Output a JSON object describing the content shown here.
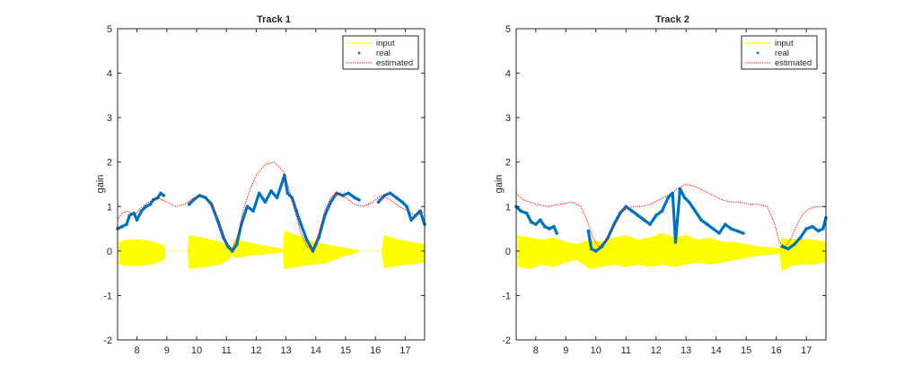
{
  "colors": {
    "input": "#ffff00",
    "real": "#0072bd",
    "estimated": "#ff0000",
    "axes": "#262626"
  },
  "chart_data": [
    {
      "type": "line",
      "title": "Track 1",
      "xlabel": "",
      "ylabel": "gain",
      "xlim": [
        7.35,
        17.65
      ],
      "ylim": [
        -2,
        5
      ],
      "xticks": [
        8,
        9,
        10,
        11,
        12,
        13,
        14,
        15,
        16,
        17
      ],
      "yticks": [
        -2,
        -1,
        0,
        1,
        2,
        3,
        4,
        5
      ],
      "legend": {
        "location": "top-right",
        "entries": [
          "input",
          "real",
          "estimated"
        ]
      },
      "grid": false,
      "series": [
        {
          "name": "input",
          "kind": "band",
          "x": [
            7.4,
            7.6,
            8.0,
            8.5,
            8.9,
            8.95,
            9.7,
            9.75,
            10.2,
            10.8,
            11.1,
            11.2,
            11.3,
            11.8,
            12.4,
            12.9,
            12.95,
            13.5,
            13.9,
            14.3,
            14.9,
            15.4,
            15.45,
            16.2,
            16.3,
            16.8,
            17.2,
            17.65
          ],
          "upper": [
            0.2,
            0.25,
            0.26,
            0.22,
            0.12,
            0.0,
            0.0,
            0.35,
            0.3,
            0.2,
            0.1,
            0.08,
            0.25,
            0.18,
            0.1,
            0.05,
            0.45,
            0.32,
            0.2,
            0.15,
            0.08,
            0.02,
            0.0,
            0.0,
            0.35,
            0.25,
            0.2,
            0.15
          ],
          "lower": [
            -0.3,
            -0.33,
            -0.33,
            -0.3,
            -0.2,
            0.0,
            0.0,
            -0.4,
            -0.36,
            -0.3,
            -0.18,
            -0.08,
            -0.15,
            -0.1,
            -0.06,
            -0.03,
            -0.4,
            -0.34,
            -0.3,
            -0.28,
            -0.12,
            -0.03,
            0.0,
            0.0,
            -0.38,
            -0.32,
            -0.3,
            -0.25
          ]
        },
        {
          "name": "real",
          "kind": "dots",
          "segments": [
            {
              "x": [
                7.35,
                7.5,
                7.65,
                7.75,
                7.9,
                8.0,
                8.15,
                8.3,
                8.45,
                8.55,
                8.7,
                8.8,
                8.9
              ],
              "y": [
                0.5,
                0.55,
                0.6,
                0.8,
                0.85,
                0.7,
                0.9,
                1.0,
                1.05,
                1.15,
                1.2,
                1.3,
                1.25
              ]
            },
            {
              "x": [
                9.75,
                9.9,
                10.1,
                10.3,
                10.5,
                10.7,
                10.9,
                11.05,
                11.2,
                11.35,
                11.5,
                11.7,
                11.9,
                12.1,
                12.3,
                12.5,
                12.7,
                12.85,
                12.95,
                13.05,
                13.2,
                13.35,
                13.5,
                13.7,
                13.9,
                14.1,
                14.3,
                14.5,
                14.7,
                14.9,
                15.1,
                15.3,
                15.45
              ],
              "y": [
                1.05,
                1.15,
                1.25,
                1.2,
                1.05,
                0.7,
                0.3,
                0.1,
                0.0,
                0.15,
                0.6,
                1.0,
                0.9,
                1.3,
                1.1,
                1.35,
                1.2,
                1.5,
                1.7,
                1.3,
                1.2,
                0.9,
                0.6,
                0.25,
                0.0,
                0.3,
                0.8,
                1.1,
                1.3,
                1.25,
                1.3,
                1.2,
                1.15
              ]
            },
            {
              "x": [
                16.1,
                16.3,
                16.5,
                16.7,
                16.9,
                17.05,
                17.2,
                17.35,
                17.5,
                17.65
              ],
              "y": [
                1.1,
                1.25,
                1.3,
                1.2,
                1.1,
                1.0,
                0.7,
                0.8,
                0.9,
                0.6
              ]
            }
          ]
        },
        {
          "name": "estimated",
          "kind": "line",
          "x": [
            7.35,
            7.5,
            7.7,
            7.9,
            8.1,
            8.4,
            8.7,
            9.0,
            9.3,
            9.6,
            9.9,
            10.2,
            10.5,
            10.8,
            11.0,
            11.2,
            11.4,
            11.6,
            11.8,
            12.0,
            12.3,
            12.6,
            12.9,
            13.1,
            13.3,
            13.5,
            13.7,
            13.9,
            14.1,
            14.3,
            14.5,
            14.7,
            15.0,
            15.3,
            15.6,
            15.9,
            16.2,
            16.5,
            16.8,
            17.1,
            17.3,
            17.5,
            17.65
          ],
          "y": [
            0.7,
            0.85,
            0.9,
            0.8,
            0.95,
            1.1,
            1.2,
            1.1,
            1.0,
            1.05,
            1.2,
            1.25,
            1.1,
            0.6,
            0.2,
            0.05,
            0.4,
            1.0,
            1.4,
            1.7,
            1.95,
            2.0,
            1.8,
            1.4,
            0.9,
            0.4,
            0.1,
            0.05,
            0.4,
            0.9,
            1.2,
            1.3,
            1.2,
            1.05,
            1.0,
            1.1,
            1.25,
            1.15,
            1.0,
            0.9,
            0.8,
            0.9,
            0.85
          ]
        }
      ]
    },
    {
      "type": "line",
      "title": "Track 2",
      "xlabel": "",
      "ylabel": "gain",
      "xlim": [
        7.35,
        17.65
      ],
      "ylim": [
        -2,
        5
      ],
      "xticks": [
        8,
        9,
        10,
        11,
        12,
        13,
        14,
        15,
        16,
        17
      ],
      "yticks": [
        -2,
        -1,
        0,
        1,
        2,
        3,
        4,
        5
      ],
      "legend": {
        "location": "top-right",
        "entries": [
          "input",
          "real",
          "estimated"
        ]
      },
      "grid": false,
      "series": [
        {
          "name": "input",
          "kind": "band",
          "x": [
            7.4,
            7.8,
            8.2,
            8.6,
            9.0,
            9.4,
            9.8,
            10.2,
            10.6,
            11.0,
            11.4,
            11.8,
            12.2,
            12.6,
            13.0,
            13.4,
            13.8,
            14.2,
            14.6,
            15.0,
            15.4,
            15.8,
            16.1,
            16.2,
            16.4,
            16.8,
            17.2,
            17.65
          ],
          "upper": [
            0.35,
            0.3,
            0.25,
            0.3,
            0.2,
            0.15,
            0.25,
            0.2,
            0.3,
            0.35,
            0.25,
            0.3,
            0.4,
            0.3,
            0.35,
            0.25,
            0.3,
            0.2,
            0.2,
            0.15,
            0.1,
            0.08,
            0.05,
            0.3,
            0.25,
            0.28,
            0.25,
            0.2
          ],
          "lower": [
            -0.35,
            -0.4,
            -0.3,
            -0.35,
            -0.25,
            -0.2,
            -0.4,
            -0.35,
            -0.3,
            -0.35,
            -0.3,
            -0.35,
            -0.3,
            -0.35,
            -0.3,
            -0.25,
            -0.3,
            -0.25,
            -0.2,
            -0.15,
            -0.1,
            -0.08,
            -0.05,
            -0.45,
            -0.35,
            -0.3,
            -0.3,
            -0.25
          ]
        },
        {
          "name": "real",
          "kind": "dots",
          "segments": [
            {
              "x": [
                7.35,
                7.5,
                7.7,
                7.85,
                8.0,
                8.15,
                8.3,
                8.45,
                8.6,
                8.7
              ],
              "y": [
                1.0,
                0.9,
                0.85,
                0.65,
                0.6,
                0.7,
                0.55,
                0.5,
                0.55,
                0.4
              ]
            },
            {
              "x": [
                9.75,
                9.85,
                10.0,
                10.2,
                10.4,
                10.6,
                10.8,
                11.0,
                11.2,
                11.4,
                11.6,
                11.8,
                12.0,
                12.2,
                12.4,
                12.55,
                12.65,
                12.8,
                12.95,
                13.1,
                13.3,
                13.5,
                13.7,
                13.9,
                14.1,
                14.3,
                14.5,
                14.7,
                14.9
              ],
              "y": [
                0.45,
                0.05,
                0.0,
                0.1,
                0.3,
                0.6,
                0.85,
                1.0,
                0.9,
                0.8,
                0.7,
                0.6,
                0.8,
                0.9,
                1.2,
                1.3,
                0.2,
                1.4,
                1.2,
                1.1,
                0.9,
                0.7,
                0.6,
                0.5,
                0.4,
                0.6,
                0.5,
                0.45,
                0.4
              ]
            },
            {
              "x": [
                16.2,
                16.4,
                16.6,
                16.8,
                17.0,
                17.2,
                17.4,
                17.55,
                17.65
              ],
              "y": [
                0.1,
                0.05,
                0.15,
                0.3,
                0.5,
                0.55,
                0.45,
                0.5,
                0.75
              ]
            }
          ]
        },
        {
          "name": "estimated",
          "kind": "line",
          "x": [
            7.35,
            7.6,
            8.0,
            8.4,
            8.8,
            9.2,
            9.5,
            9.7,
            9.9,
            10.1,
            10.3,
            10.6,
            10.9,
            11.2,
            11.5,
            11.8,
            12.1,
            12.4,
            12.7,
            13.0,
            13.3,
            13.6,
            13.9,
            14.2,
            14.5,
            14.8,
            15.1,
            15.4,
            15.7,
            15.95,
            16.1,
            16.3,
            16.5,
            16.7,
            16.9,
            17.1,
            17.3,
            17.5,
            17.65
          ],
          "y": [
            1.3,
            1.15,
            1.05,
            1.0,
            1.05,
            1.1,
            1.0,
            0.7,
            0.3,
            0.1,
            0.2,
            0.55,
            0.9,
            1.0,
            1.0,
            1.05,
            1.15,
            1.25,
            1.4,
            1.5,
            1.45,
            1.35,
            1.25,
            1.15,
            1.1,
            1.1,
            1.05,
            1.05,
            1.0,
            0.6,
            0.2,
            0.1,
            0.3,
            0.6,
            0.85,
            0.95,
            1.0,
            1.0,
            1.0
          ]
        }
      ]
    }
  ]
}
